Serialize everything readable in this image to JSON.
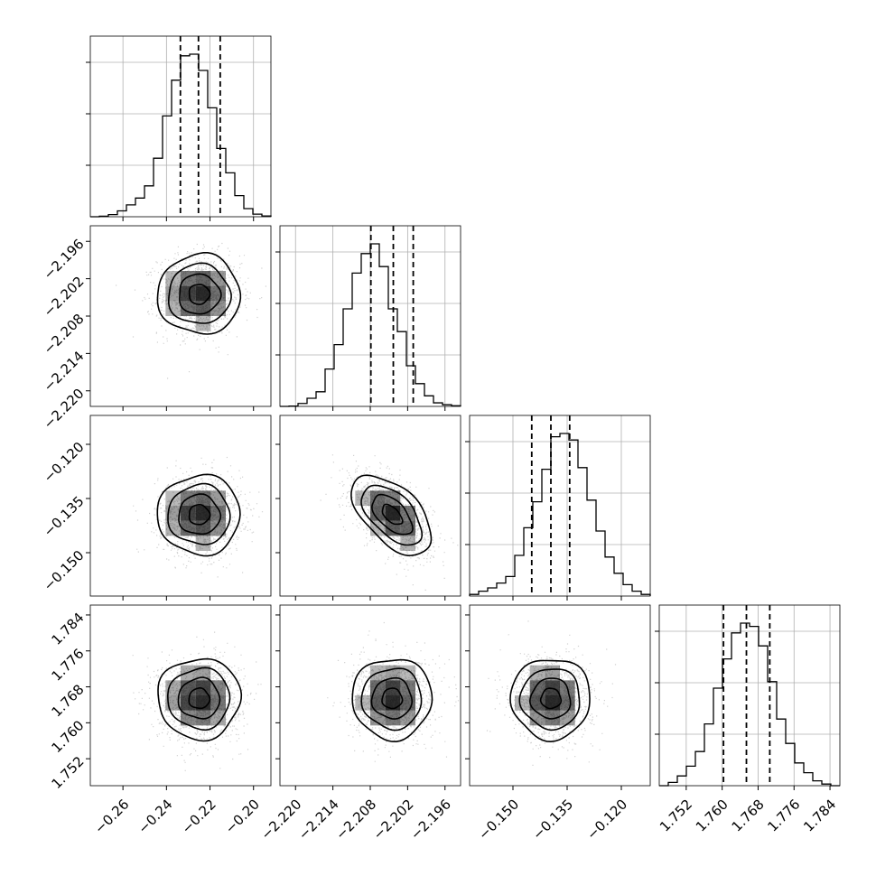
{
  "chart_data": {
    "type": "corner",
    "title": "",
    "parameters": [
      {
        "name": "",
        "range": [
          -0.275,
          -0.192
        ],
        "ticks": [
          -0.26,
          -0.24,
          -0.22,
          -0.2
        ],
        "tick_labels": [
          "−0.26",
          "−0.24",
          "−0.22",
          "−0.20"
        ],
        "mean": -0.225,
        "sigma": 0.0095,
        "quantiles": [
          -0.2336,
          -0.2253,
          -0.2153
        ],
        "histogram": [
          0,
          0.003,
          0.013,
          0.036,
          0.073,
          0.115,
          0.19,
          0.36,
          0.62,
          0.84,
          0.99,
          1.0,
          0.9,
          0.67,
          0.42,
          0.27,
          0.13,
          0.05,
          0.016,
          0.005
        ]
      },
      {
        "name": "",
        "range": [
          -2.2225,
          -2.1935
        ],
        "ticks": [
          -2.22,
          -2.214,
          -2.208,
          -2.202,
          -2.196
        ],
        "tick_labels": [
          "−2.220",
          "−2.214",
          "−2.208",
          "−2.202",
          "−2.196"
        ],
        "mean": -2.2045,
        "sigma": 0.0032,
        "quantiles": [
          -2.2079,
          -2.2043,
          -2.2011
        ],
        "histogram": [
          0,
          0.002,
          0.018,
          0.05,
          0.09,
          0.23,
          0.38,
          0.6,
          0.82,
          0.94,
          1.0,
          0.86,
          0.6,
          0.46,
          0.25,
          0.14,
          0.065,
          0.022,
          0.01,
          0.004
        ]
      },
      {
        "name": "",
        "range": [
          -0.162,
          -0.112
        ],
        "ticks": [
          -0.15,
          -0.135,
          -0.12
        ],
        "tick_labels": [
          "−0.150",
          "−0.135",
          "−0.120"
        ],
        "mean": -0.1395,
        "sigma": 0.0055,
        "quantiles": [
          -0.1448,
          -0.1395,
          -0.1343
        ],
        "histogram": [
          0.01,
          0.03,
          0.05,
          0.08,
          0.12,
          0.25,
          0.42,
          0.58,
          0.78,
          0.98,
          1.0,
          0.96,
          0.79,
          0.59,
          0.4,
          0.24,
          0.14,
          0.07,
          0.03,
          0.01
        ]
      },
      {
        "name": "",
        "range": [
          1.746,
          1.7862
        ],
        "ticks": [
          1.752,
          1.76,
          1.768,
          1.776,
          1.784
        ],
        "tick_labels": [
          "1.752",
          "1.760",
          "1.768",
          "1.776",
          "1.784"
        ],
        "mean": 1.7654,
        "sigma": 0.0045,
        "quantiles": [
          1.7603,
          1.7654,
          1.7706
        ],
        "histogram": [
          0,
          0.02,
          0.06,
          0.12,
          0.21,
          0.38,
          0.6,
          0.78,
          0.94,
          1.0,
          0.98,
          0.86,
          0.64,
          0.41,
          0.26,
          0.14,
          0.08,
          0.03,
          0.01,
          0
        ]
      }
    ],
    "correlations": {
      "1-0": 0.0,
      "2-0": 0.0,
      "2-1": -0.55,
      "3-0": 0.0,
      "3-1": 0.0,
      "3-2": 0.0
    },
    "contour_levels": [
      "0.5-sigma",
      "1-sigma",
      "1.5-sigma",
      "2-sigma"
    ],
    "grid": true,
    "colors": {
      "line": "#000000",
      "grid": "#b0b0b0",
      "points": "#000000"
    }
  }
}
